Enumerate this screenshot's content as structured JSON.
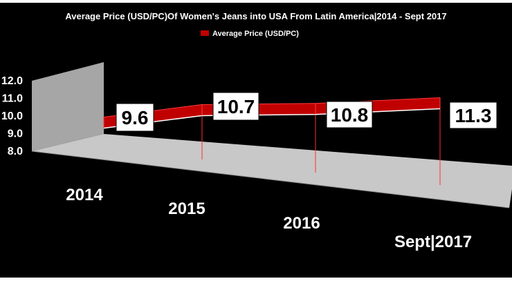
{
  "chart_data": {
    "type": "line",
    "style": "3d-ribbon",
    "title": "Average Price (USD/PC)Of Women's Jeans into USA From Latin America|2014 - Sept 2017",
    "categories": [
      "2014",
      "2015",
      "2016",
      "Sept|2017"
    ],
    "series": [
      {
        "name": "Average Price (USD/PC)",
        "values": [
          9.6,
          10.7,
          10.8,
          11.3
        ]
      }
    ],
    "data_labels": [
      "9.6",
      "10.7",
      "10.8",
      "11.3"
    ],
    "ylim": [
      8.0,
      12.0
    ],
    "y_ticks": [
      "8.0",
      "9.0",
      "10.0",
      "11.0",
      "12.0"
    ],
    "legend_position": "top",
    "grid": false,
    "colors": {
      "background": "#000000",
      "series": "#c00000",
      "series_light": "#ff3b3b",
      "wall": "#a6a6a6",
      "floor": "#c8c8c8",
      "text": "#ffffff",
      "label_box": "#ffffff",
      "label_text": "#000000"
    }
  }
}
